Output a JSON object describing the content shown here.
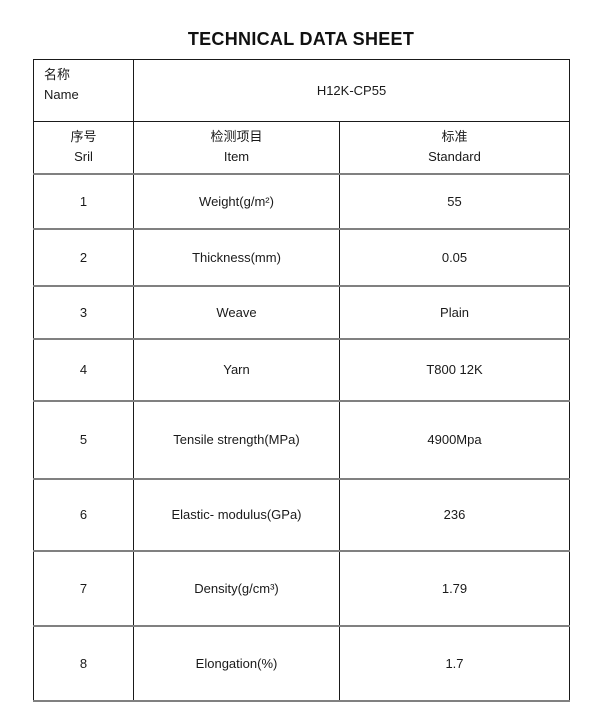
{
  "title": "TECHNICAL DATA SHEET",
  "name_row": {
    "label_cn": "名称",
    "label_en": "Name",
    "value": "H12K-CP55"
  },
  "columns": [
    {
      "cn": "序号",
      "en": "Sril"
    },
    {
      "cn": "检测项目",
      "en": "Item"
    },
    {
      "cn": "标准",
      "en": "Standard"
    }
  ],
  "rows": [
    {
      "sril": "1",
      "item": "Weight(g/m²)",
      "standard": "55"
    },
    {
      "sril": "2",
      "item": "Thickness(mm)",
      "standard": "0.05"
    },
    {
      "sril": "3",
      "item": "Weave",
      "standard": "Plain"
    },
    {
      "sril": "4",
      "item": "Yarn",
      "standard": "T800 12K"
    },
    {
      "sril": "5",
      "item": "Tensile strength(MPa)",
      "standard": "4900Mpa"
    },
    {
      "sril": "6",
      "item": "Elastic- modulus(GPa)",
      "standard": "236"
    },
    {
      "sril": "7",
      "item": "Density(g/cm³)",
      "standard": "1.79"
    },
    {
      "sril": "8",
      "item": "Elongation(%)",
      "standard": "1.7"
    }
  ],
  "colors": {
    "text": "#1a1a1a",
    "border_vertical": "#1a1a1a",
    "border_horizontal": "#808080",
    "background": "#ffffff"
  }
}
